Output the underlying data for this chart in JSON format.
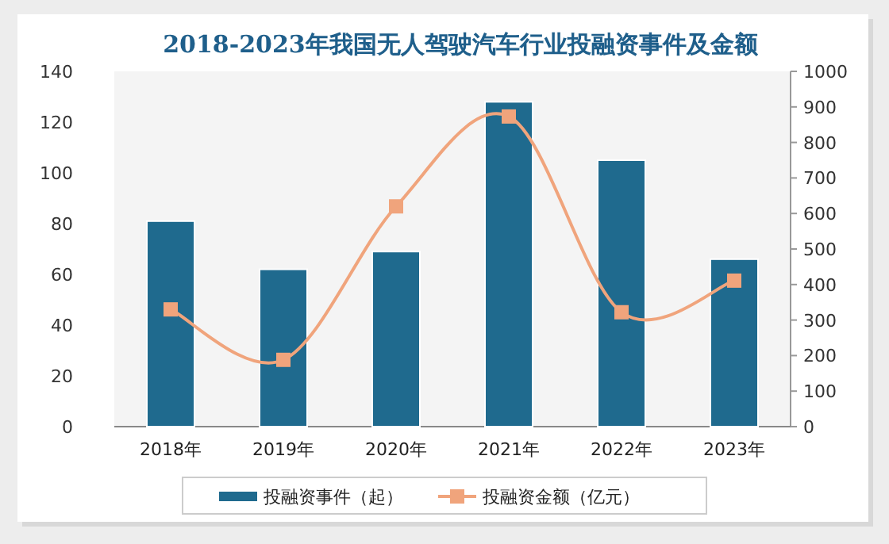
{
  "chart_data": {
    "type": "bar",
    "title": "2018-2023年我国无人驾驶汽车行业投融资事件及金额",
    "categories": [
      "2018年",
      "2019年",
      "2020年",
      "2021年",
      "2022年",
      "2023年"
    ],
    "series": [
      {
        "name": "投融资事件（起）",
        "color": "#1f6a8e",
        "values": [
          81,
          62,
          69,
          128,
          105,
          66
        ]
      },
      {
        "name": "投融资金额（亿元）",
        "type": "line",
        "axis": "y2",
        "color": "#f0a47c",
        "values": [
          330,
          188,
          620,
          873,
          322,
          411
        ]
      }
    ],
    "ylim": [
      0,
      140
    ],
    "yticks": [
      0,
      20,
      40,
      60,
      80,
      100,
      120,
      140
    ],
    "y2lim": [
      0,
      1000
    ],
    "y2ticks": [
      0,
      100,
      200,
      300,
      400,
      500,
      600,
      700,
      800,
      900,
      1000
    ],
    "legend": "bottom",
    "marker": "square"
  }
}
